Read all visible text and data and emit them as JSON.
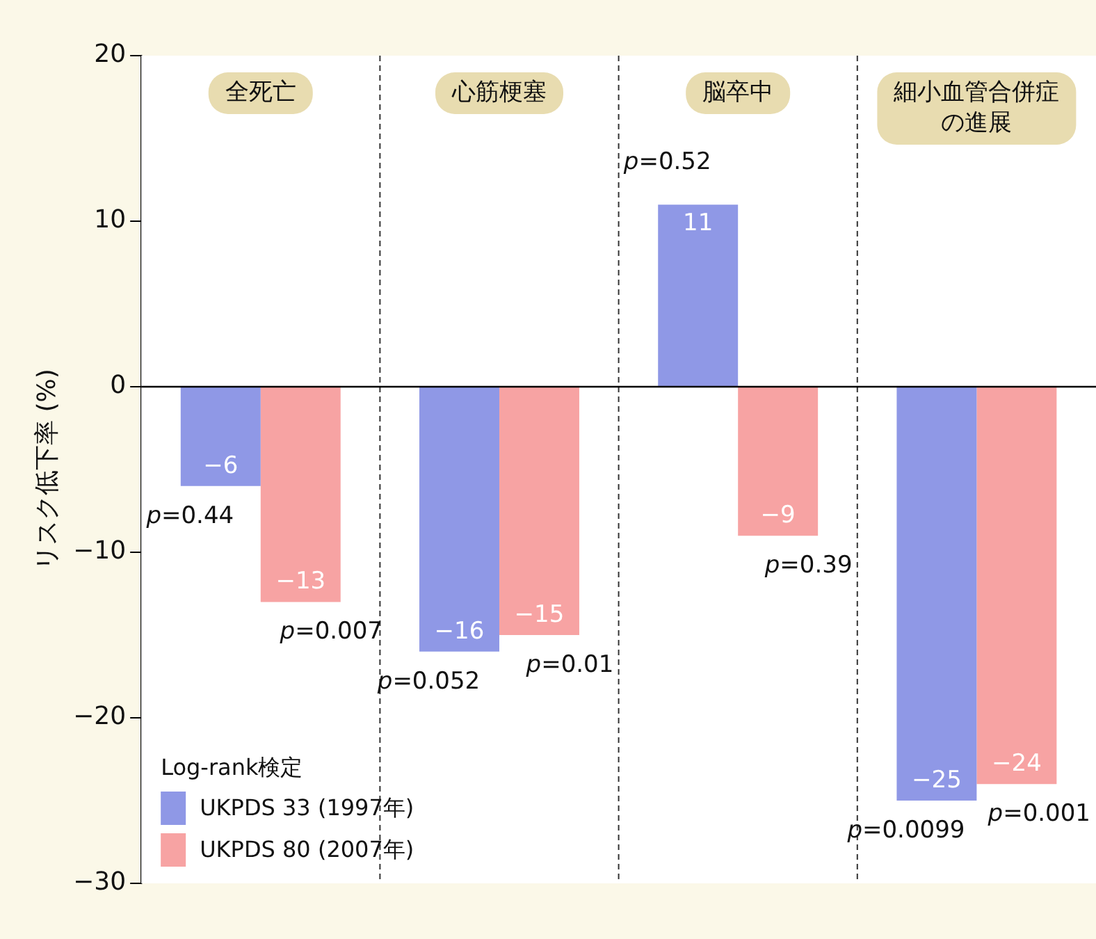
{
  "chart_data": {
    "type": "bar",
    "ylabel": "リスク低下率 (%)",
    "categories": [
      "全死亡",
      "心筋梗塞",
      "脳卒中",
      "細小血管合併症の進展"
    ],
    "series": [
      {
        "name": "UKPDS 33 (1997年)",
        "color": "#8f98e6",
        "values": [
          -6,
          -16,
          11,
          -25
        ],
        "value_labels": [
          "−6",
          "−16",
          "11",
          "−25"
        ]
      },
      {
        "name": "UKPDS 80 (2007年)",
        "color": "#f7a3a3",
        "values": [
          -13,
          -15,
          -9,
          -24
        ],
        "value_labels": [
          "−13",
          "−15",
          "−9",
          "−24"
        ]
      }
    ],
    "ylim": [
      -30,
      20
    ],
    "yticks": [
      {
        "value": -30,
        "label": "−30"
      },
      {
        "value": -20,
        "label": "−20"
      },
      {
        "value": -10,
        "label": "−10"
      },
      0,
      10,
      20
    ],
    "grid": false,
    "legend": "bottom left",
    "legend_title": "Log-rank検定",
    "ref_lines": [
      {
        "axis": "y",
        "value": 0
      }
    ],
    "annotations": [
      {
        "text": "p=0.44",
        "x": "全死亡",
        "y": -6
      },
      {
        "text": "p=0.007",
        "x": "全死亡",
        "y": -13
      },
      {
        "text": "p=0.052",
        "x": "心筋梗塞",
        "y": -16
      },
      {
        "text": "p=0.01",
        "x": "心筋梗塞",
        "y": -15
      },
      {
        "text": "p=0.52",
        "x": "脳卒中",
        "y": 11
      },
      {
        "text": "p=0.39",
        "x": "脳卒中",
        "y": -9
      },
      {
        "text": "p=0.0099",
        "x": "細小血管合併症の進展",
        "y": -25
      },
      {
        "text": "p=0.001",
        "x": "細小血管合併症の進展",
        "y": -24
      }
    ]
  }
}
